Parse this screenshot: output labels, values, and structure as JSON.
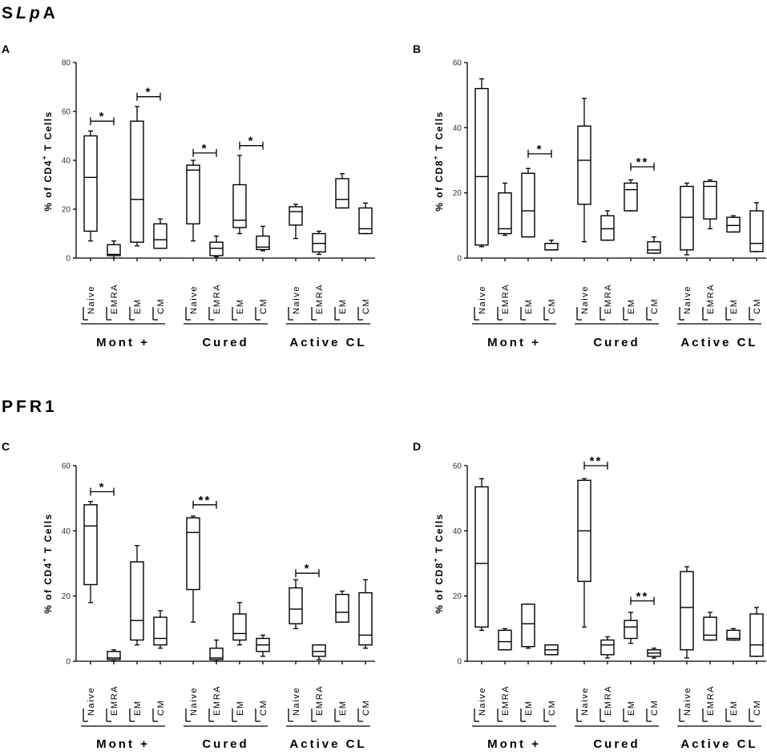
{
  "sections": [
    {
      "title_prefix": "S",
      "title_italic": "Lp",
      "title_suffix": "A"
    },
    {
      "title_prefix": "PFR1",
      "title_italic": "",
      "title_suffix": ""
    }
  ],
  "colors": {
    "stroke": "#000000",
    "background": "#ffffff"
  },
  "chart_data": [
    {
      "type": "boxplot",
      "panel": "A",
      "section": "SLpA",
      "ylabel": "% of CD4+ T Cells",
      "ylabel_main": "% of CD4",
      "ylabel_sup": "+",
      "ylabel_rest": " T Cells",
      "ylim": [
        0,
        80
      ],
      "yticks": [
        0,
        20,
        40,
        60,
        80
      ],
      "groups": [
        "Mont +",
        "Cured",
        "Active CL"
      ],
      "categories": [
        "Naive",
        "EMRA",
        "EM",
        "CM"
      ],
      "boxes": [
        {
          "group": 0,
          "category": "Naive",
          "min": 7,
          "q1": 11,
          "median": 33,
          "q3": 50,
          "max": 52
        },
        {
          "group": 0,
          "category": "EMRA",
          "min": 0,
          "q1": 1,
          "median": 1.5,
          "q3": 5.5,
          "max": 7
        },
        {
          "group": 0,
          "category": "EM",
          "min": 5,
          "q1": 6.5,
          "median": 24,
          "q3": 56,
          "max": 62
        },
        {
          "group": 0,
          "category": "CM",
          "min": 4,
          "q1": 4,
          "median": 7.5,
          "q3": 14,
          "max": 16
        },
        {
          "group": 1,
          "category": "Naive",
          "min": 7,
          "q1": 14,
          "median": 36,
          "q3": 38,
          "max": 40
        },
        {
          "group": 1,
          "category": "EMRA",
          "min": 0.5,
          "q1": 1,
          "median": 4,
          "q3": 6.5,
          "max": 9
        },
        {
          "group": 1,
          "category": "EM",
          "min": 10,
          "q1": 12.5,
          "median": 15.5,
          "q3": 30,
          "max": 42
        },
        {
          "group": 1,
          "category": "CM",
          "min": 3,
          "q1": 3.5,
          "median": 4.5,
          "q3": 9,
          "max": 13
        },
        {
          "group": 2,
          "category": "Naive",
          "min": 8,
          "q1": 13.5,
          "median": 19,
          "q3": 21,
          "max": 22
        },
        {
          "group": 2,
          "category": "EMRA",
          "min": 1.5,
          "q1": 2.5,
          "median": 6,
          "q3": 10,
          "max": 11
        },
        {
          "group": 2,
          "category": "EM",
          "min": 20.5,
          "q1": 20.5,
          "median": 24,
          "q3": 32.5,
          "max": 34.5
        },
        {
          "group": 2,
          "category": "CM",
          "min": 10,
          "q1": 10,
          "median": 12,
          "q3": 20.5,
          "max": 22.5
        }
      ],
      "significance": [
        {
          "label": "*",
          "from": [
            0,
            0
          ],
          "to": [
            0,
            1
          ],
          "y": 56
        },
        {
          "label": "*",
          "from": [
            0,
            2
          ],
          "to": [
            0,
            3
          ],
          "y": 66
        },
        {
          "label": "*",
          "from": [
            1,
            0
          ],
          "to": [
            1,
            1
          ],
          "y": 43
        },
        {
          "label": "*",
          "from": [
            1,
            2
          ],
          "to": [
            1,
            3
          ],
          "y": 46
        }
      ]
    },
    {
      "type": "boxplot",
      "panel": "B",
      "section": "SLpA",
      "ylabel": "% of CD8+ T Cells",
      "ylabel_main": "% of CD8",
      "ylabel_sup": "+",
      "ylabel_rest": " T Cells",
      "ylim": [
        0,
        60
      ],
      "yticks": [
        0,
        20,
        40,
        60
      ],
      "groups": [
        "Mont +",
        "Cured",
        "Active CL"
      ],
      "categories": [
        "Naive",
        "EMRA",
        "EM",
        "CM"
      ],
      "boxes": [
        {
          "group": 0,
          "category": "Naive",
          "min": 3.5,
          "q1": 4,
          "median": 25,
          "q3": 52,
          "max": 55
        },
        {
          "group": 0,
          "category": "EMRA",
          "min": 7,
          "q1": 7.5,
          "median": 9,
          "q3": 20,
          "max": 23
        },
        {
          "group": 0,
          "category": "EM",
          "min": 6.5,
          "q1": 6.5,
          "median": 14.5,
          "q3": 26,
          "max": 27.5
        },
        {
          "group": 0,
          "category": "CM",
          "min": 2.5,
          "q1": 2.5,
          "median": 2.5,
          "q3": 4.5,
          "max": 5.5
        },
        {
          "group": 1,
          "category": "Naive",
          "min": 5,
          "q1": 16.5,
          "median": 30,
          "q3": 40.5,
          "max": 49
        },
        {
          "group": 1,
          "category": "EMRA",
          "min": 5.5,
          "q1": 5.5,
          "median": 9,
          "q3": 13,
          "max": 14.5
        },
        {
          "group": 1,
          "category": "EM",
          "min": 14.5,
          "q1": 14.5,
          "median": 21,
          "q3": 23,
          "max": 24
        },
        {
          "group": 1,
          "category": "CM",
          "min": 1.5,
          "q1": 1.5,
          "median": 2.5,
          "q3": 5,
          "max": 6.5
        },
        {
          "group": 2,
          "category": "Naive",
          "min": 1,
          "q1": 2.5,
          "median": 12.5,
          "q3": 22,
          "max": 23
        },
        {
          "group": 2,
          "category": "EMRA",
          "min": 9,
          "q1": 12,
          "median": 22,
          "q3": 23.5,
          "max": 24
        },
        {
          "group": 2,
          "category": "EM",
          "min": 8,
          "q1": 8,
          "median": 10,
          "q3": 12.5,
          "max": 13
        },
        {
          "group": 2,
          "category": "CM",
          "min": 2,
          "q1": 2,
          "median": 4.5,
          "q3": 14.5,
          "max": 17
        }
      ],
      "significance": [
        {
          "label": "*",
          "from": [
            0,
            2
          ],
          "to": [
            0,
            3
          ],
          "y": 32
        },
        {
          "label": "**",
          "from": [
            1,
            2
          ],
          "to": [
            1,
            3
          ],
          "y": 28
        }
      ]
    },
    {
      "type": "boxplot",
      "panel": "C",
      "section": "PFR1",
      "ylabel": "% of CD4+ T Cells",
      "ylabel_main": "% of CD4",
      "ylabel_sup": "+",
      "ylabel_rest": " T Cells",
      "ylim": [
        0,
        60
      ],
      "yticks": [
        0,
        20,
        40,
        60
      ],
      "groups": [
        "Mont +",
        "Cured",
        "Active CL"
      ],
      "categories": [
        "Naive",
        "EMRA",
        "EM",
        "CM"
      ],
      "boxes": [
        {
          "group": 0,
          "category": "Naive",
          "min": 18,
          "q1": 23.5,
          "median": 41.5,
          "q3": 48,
          "max": 49
        },
        {
          "group": 0,
          "category": "EMRA",
          "min": 0,
          "q1": 0.5,
          "median": 1,
          "q3": 3,
          "max": 3.5
        },
        {
          "group": 0,
          "category": "EM",
          "min": 5,
          "q1": 6.5,
          "median": 12.5,
          "q3": 30.5,
          "max": 35.5
        },
        {
          "group": 0,
          "category": "CM",
          "min": 4,
          "q1": 5,
          "median": 7,
          "q3": 13.5,
          "max": 15.5
        },
        {
          "group": 1,
          "category": "Naive",
          "min": 12,
          "q1": 22,
          "median": 39.5,
          "q3": 44,
          "max": 44.5
        },
        {
          "group": 1,
          "category": "EMRA",
          "min": 0,
          "q1": 0.5,
          "median": 1,
          "q3": 4,
          "max": 6.5
        },
        {
          "group": 1,
          "category": "EM",
          "min": 5,
          "q1": 6.5,
          "median": 8.5,
          "q3": 14.5,
          "max": 18
        },
        {
          "group": 1,
          "category": "CM",
          "min": 1.5,
          "q1": 3,
          "median": 5,
          "q3": 7,
          "max": 8
        },
        {
          "group": 2,
          "category": "Naive",
          "min": 10,
          "q1": 11.5,
          "median": 16,
          "q3": 22.5,
          "max": 25
        },
        {
          "group": 2,
          "category": "EMRA",
          "min": 0.5,
          "q1": 1.5,
          "median": 3,
          "q3": 5,
          "max": 5
        },
        {
          "group": 2,
          "category": "EM",
          "min": 12,
          "q1": 12,
          "median": 15,
          "q3": 20.5,
          "max": 21.5
        },
        {
          "group": 2,
          "category": "CM",
          "min": 4,
          "q1": 5,
          "median": 8,
          "q3": 21,
          "max": 25
        }
      ],
      "significance": [
        {
          "label": "*",
          "from": [
            0,
            0
          ],
          "to": [
            0,
            1
          ],
          "y": 52
        },
        {
          "label": "**",
          "from": [
            1,
            0
          ],
          "to": [
            1,
            1
          ],
          "y": 48
        },
        {
          "label": "*",
          "from": [
            2,
            0
          ],
          "to": [
            2,
            1
          ],
          "y": 27
        }
      ]
    },
    {
      "type": "boxplot",
      "panel": "D",
      "section": "PFR1",
      "ylabel": "% of CD8+ T Cells",
      "ylabel_main": "% of CD8",
      "ylabel_sup": "+",
      "ylabel_rest": " T Cells",
      "ylim": [
        0,
        60
      ],
      "yticks": [
        0,
        20,
        40,
        60
      ],
      "groups": [
        "Mont +",
        "Cured",
        "Active CL"
      ],
      "categories": [
        "Naive",
        "EMRA",
        "EM",
        "CM"
      ],
      "boxes": [
        {
          "group": 0,
          "category": "Naive",
          "min": 9.5,
          "q1": 10.5,
          "median": 30,
          "q3": 53.5,
          "max": 56
        },
        {
          "group": 0,
          "category": "EMRA",
          "min": 3.5,
          "q1": 3.5,
          "median": 6,
          "q3": 9.5,
          "max": 10
        },
        {
          "group": 0,
          "category": "EM",
          "min": 4,
          "q1": 4.5,
          "median": 11.5,
          "q3": 17.5,
          "max": 17.5
        },
        {
          "group": 0,
          "category": "CM",
          "min": 2,
          "q1": 2,
          "median": 3.5,
          "q3": 5,
          "max": 5
        },
        {
          "group": 1,
          "category": "Naive",
          "min": 10.5,
          "q1": 24.5,
          "median": 40,
          "q3": 55.5,
          "max": 56
        },
        {
          "group": 1,
          "category": "EMRA",
          "min": 1,
          "q1": 2,
          "median": 5,
          "q3": 6.5,
          "max": 7.5
        },
        {
          "group": 1,
          "category": "EM",
          "min": 5.5,
          "q1": 7,
          "median": 10.5,
          "q3": 12.5,
          "max": 15
        },
        {
          "group": 1,
          "category": "CM",
          "min": 1,
          "q1": 1.5,
          "median": 2.5,
          "q3": 3.5,
          "max": 4
        },
        {
          "group": 2,
          "category": "Naive",
          "min": 1,
          "q1": 3.5,
          "median": 16.5,
          "q3": 27.5,
          "max": 29
        },
        {
          "group": 2,
          "category": "EMRA",
          "min": 6.5,
          "q1": 6.5,
          "median": 8,
          "q3": 13.5,
          "max": 15
        },
        {
          "group": 2,
          "category": "EM",
          "min": 6.5,
          "q1": 6.5,
          "median": 7,
          "q3": 9.5,
          "max": 10
        },
        {
          "group": 2,
          "category": "CM",
          "min": 1.5,
          "q1": 1.5,
          "median": 5,
          "q3": 14.5,
          "max": 16.5
        }
      ],
      "significance": [
        {
          "label": "**",
          "from": [
            1,
            0
          ],
          "to": [
            1,
            1
          ],
          "y": 60
        },
        {
          "label": "**",
          "from": [
            1,
            2
          ],
          "to": [
            1,
            3
          ],
          "y": 18.5
        }
      ]
    }
  ]
}
